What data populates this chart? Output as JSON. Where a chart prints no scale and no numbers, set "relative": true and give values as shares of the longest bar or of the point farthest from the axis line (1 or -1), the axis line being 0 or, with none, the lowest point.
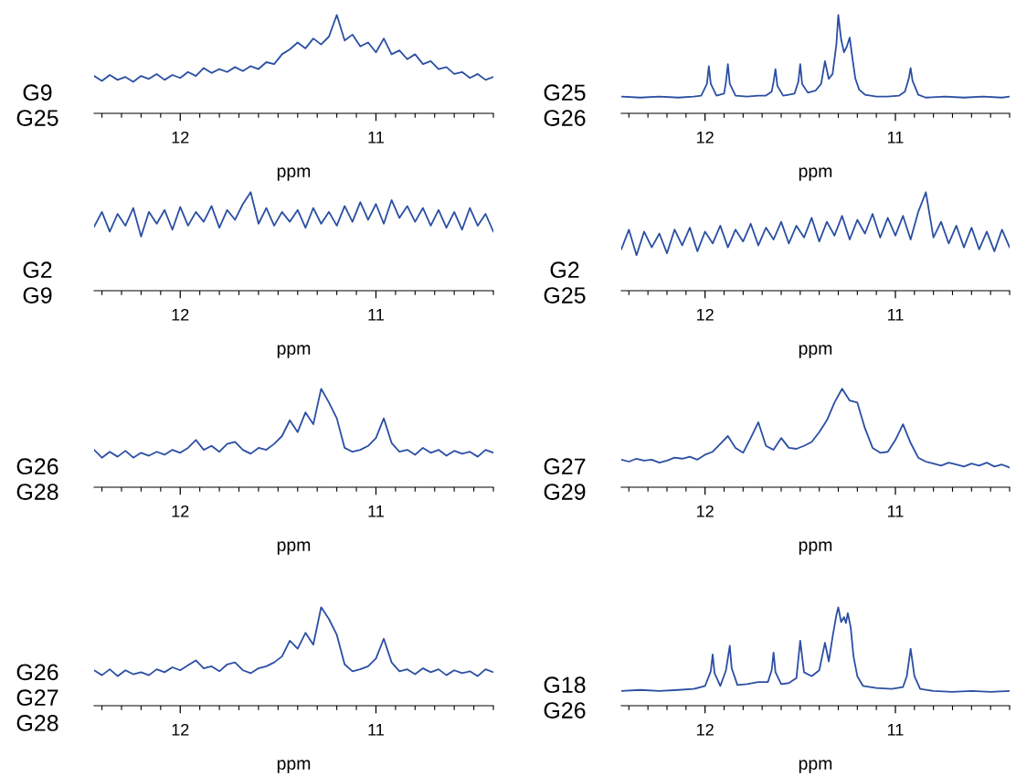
{
  "chart_data": [
    {
      "type": "line",
      "relative": true,
      "ylabel": "G9\nG25",
      "xlabel": "ppm",
      "xlim": [
        12.44,
        10.4
      ],
      "xticks": [
        {
          "value": 12.4,
          "label": null
        },
        {
          "value": 12.3,
          "label": null
        },
        {
          "value": 12.2,
          "label": null
        },
        {
          "value": 12.1,
          "label": null
        },
        12,
        {
          "value": 11.9,
          "label": null
        },
        {
          "value": 11.8,
          "label": null
        },
        {
          "value": 11.7,
          "label": null
        },
        {
          "value": 11.6,
          "label": null
        },
        {
          "value": 11.5,
          "label": null
        },
        {
          "value": 11.4,
          "label": null
        },
        {
          "value": 11.3,
          "label": null
        },
        {
          "value": 11.2,
          "label": null
        },
        {
          "value": 11.1,
          "label": null
        },
        11,
        {
          "value": 10.9,
          "label": null
        },
        {
          "value": 10.8,
          "label": null
        },
        {
          "value": 10.7,
          "label": null
        },
        {
          "value": 10.6,
          "label": null
        },
        {
          "value": 10.5,
          "label": null
        },
        {
          "value": 10.4,
          "label": null
        }
      ],
      "x": [
        12.44,
        12.4,
        12.36,
        12.32,
        12.28,
        12.24,
        12.2,
        12.16,
        12.12,
        12.08,
        12.04,
        12,
        11.96,
        11.92,
        11.88,
        11.84,
        11.8,
        11.76,
        11.72,
        11.68,
        11.64,
        11.6,
        11.56,
        11.52,
        11.48,
        11.44,
        11.4,
        11.36,
        11.32,
        11.28,
        11.24,
        11.2,
        11.16,
        11.12,
        11.08,
        11.04,
        11,
        10.96,
        10.92,
        10.88,
        10.84,
        10.8,
        10.76,
        10.72,
        10.68,
        10.64,
        10.6,
        10.56,
        10.52,
        10.48,
        10.44,
        10.4
      ],
      "series": [
        {
          "color": "#2b4fa3",
          "values": [
            0.38,
            0.33,
            0.39,
            0.34,
            0.37,
            0.32,
            0.38,
            0.35,
            0.4,
            0.34,
            0.39,
            0.36,
            0.42,
            0.38,
            0.46,
            0.41,
            0.45,
            0.42,
            0.47,
            0.43,
            0.48,
            0.45,
            0.52,
            0.5,
            0.6,
            0.65,
            0.72,
            0.66,
            0.76,
            0.7,
            0.78,
            1.0,
            0.74,
            0.8,
            0.68,
            0.72,
            0.62,
            0.76,
            0.6,
            0.64,
            0.55,
            0.6,
            0.5,
            0.53,
            0.45,
            0.47,
            0.4,
            0.42,
            0.36,
            0.4,
            0.34,
            0.37
          ]
        }
      ]
    },
    {
      "type": "line",
      "relative": true,
      "ylabel": "G25\nG26",
      "xlabel": "ppm",
      "xlim": [
        12.44,
        10.4
      ],
      "xticks": [
        {
          "value": 12.4,
          "label": null
        },
        {
          "value": 12.3,
          "label": null
        },
        {
          "value": 12.2,
          "label": null
        },
        {
          "value": 12.1,
          "label": null
        },
        12,
        {
          "value": 11.9,
          "label": null
        },
        {
          "value": 11.8,
          "label": null
        },
        {
          "value": 11.7,
          "label": null
        },
        {
          "value": 11.6,
          "label": null
        },
        {
          "value": 11.5,
          "label": null
        },
        {
          "value": 11.4,
          "label": null
        },
        {
          "value": 11.3,
          "label": null
        },
        {
          "value": 11.2,
          "label": null
        },
        {
          "value": 11.1,
          "label": null
        },
        11,
        {
          "value": 10.9,
          "label": null
        },
        {
          "value": 10.8,
          "label": null
        },
        {
          "value": 10.7,
          "label": null
        },
        {
          "value": 10.6,
          "label": null
        },
        {
          "value": 10.5,
          "label": null
        },
        {
          "value": 10.4,
          "label": null
        }
      ],
      "x": [
        12.44,
        12.34,
        12.24,
        12.14,
        12.06,
        12.02,
        11.99,
        11.98,
        11.97,
        11.94,
        11.9,
        11.89,
        11.88,
        11.87,
        11.84,
        11.78,
        11.72,
        11.68,
        11.65,
        11.64,
        11.63,
        11.62,
        11.59,
        11.56,
        11.53,
        11.51,
        11.5,
        11.49,
        11.46,
        11.42,
        11.39,
        11.37,
        11.35,
        11.33,
        11.31,
        11.3,
        11.285,
        11.27,
        11.255,
        11.24,
        11.225,
        11.21,
        11.19,
        11.16,
        11.1,
        11.04,
        10.98,
        10.95,
        10.93,
        10.92,
        10.91,
        10.88,
        10.84,
        10.74,
        10.64,
        10.54,
        10.44,
        10.4
      ],
      "series": [
        {
          "color": "#2b4fa3",
          "values": [
            0.17,
            0.16,
            0.17,
            0.16,
            0.17,
            0.18,
            0.3,
            0.48,
            0.3,
            0.18,
            0.2,
            0.32,
            0.5,
            0.3,
            0.18,
            0.17,
            0.18,
            0.18,
            0.22,
            0.32,
            0.45,
            0.28,
            0.18,
            0.19,
            0.2,
            0.32,
            0.5,
            0.3,
            0.21,
            0.23,
            0.3,
            0.53,
            0.35,
            0.4,
            0.7,
            1,
            0.75,
            0.62,
            0.68,
            0.77,
            0.55,
            0.35,
            0.24,
            0.19,
            0.17,
            0.17,
            0.18,
            0.22,
            0.35,
            0.46,
            0.33,
            0.19,
            0.16,
            0.17,
            0.16,
            0.17,
            0.16,
            0.17
          ]
        }
      ]
    },
    {
      "type": "line",
      "relative": true,
      "ylabel": "G2\nG9",
      "xlabel": "ppm",
      "xlim": [
        12.44,
        10.4
      ],
      "xticks": [
        {
          "value": 12.4,
          "label": null
        },
        {
          "value": 12.3,
          "label": null
        },
        {
          "value": 12.2,
          "label": null
        },
        {
          "value": 12.1,
          "label": null
        },
        12,
        {
          "value": 11.9,
          "label": null
        },
        {
          "value": 11.8,
          "label": null
        },
        {
          "value": 11.7,
          "label": null
        },
        {
          "value": 11.6,
          "label": null
        },
        {
          "value": 11.5,
          "label": null
        },
        {
          "value": 11.4,
          "label": null
        },
        {
          "value": 11.3,
          "label": null
        },
        {
          "value": 11.2,
          "label": null
        },
        {
          "value": 11.1,
          "label": null
        },
        11,
        {
          "value": 10.9,
          "label": null
        },
        {
          "value": 10.8,
          "label": null
        },
        {
          "value": 10.7,
          "label": null
        },
        {
          "value": 10.6,
          "label": null
        },
        {
          "value": 10.5,
          "label": null
        },
        {
          "value": 10.4,
          "label": null
        }
      ],
      "x": [
        12.44,
        12.4,
        12.36,
        12.32,
        12.28,
        12.24,
        12.2,
        12.16,
        12.12,
        12.08,
        12.04,
        12,
        11.96,
        11.92,
        11.88,
        11.84,
        11.8,
        11.76,
        11.72,
        11.68,
        11.64,
        11.6,
        11.56,
        11.52,
        11.48,
        11.44,
        11.4,
        11.36,
        11.32,
        11.28,
        11.24,
        11.2,
        11.16,
        11.12,
        11.08,
        11.04,
        11,
        10.96,
        10.92,
        10.88,
        10.84,
        10.8,
        10.76,
        10.72,
        10.68,
        10.64,
        10.6,
        10.56,
        10.52,
        10.48,
        10.44,
        10.4
      ],
      "series": [
        {
          "color": "#2b4fa3",
          "values": [
            0.65,
            0.8,
            0.6,
            0.78,
            0.66,
            0.84,
            0.55,
            0.8,
            0.68,
            0.82,
            0.62,
            0.85,
            0.66,
            0.8,
            0.7,
            0.86,
            0.64,
            0.82,
            0.72,
            0.88,
            1.0,
            0.68,
            0.84,
            0.66,
            0.8,
            0.7,
            0.82,
            0.64,
            0.84,
            0.68,
            0.8,
            0.66,
            0.86,
            0.7,
            0.9,
            0.72,
            0.88,
            0.68,
            0.92,
            0.74,
            0.86,
            0.7,
            0.84,
            0.66,
            0.82,
            0.64,
            0.8,
            0.62,
            0.84,
            0.66,
            0.78,
            0.6
          ]
        }
      ]
    },
    {
      "type": "line",
      "relative": true,
      "ylabel": "G2\nG25",
      "xlabel": "ppm",
      "xlim": [
        12.44,
        10.4
      ],
      "xticks": [
        {
          "value": 12.4,
          "label": null
        },
        {
          "value": 12.3,
          "label": null
        },
        {
          "value": 12.2,
          "label": null
        },
        {
          "value": 12.1,
          "label": null
        },
        12,
        {
          "value": 11.9,
          "label": null
        },
        {
          "value": 11.8,
          "label": null
        },
        {
          "value": 11.7,
          "label": null
        },
        {
          "value": 11.6,
          "label": null
        },
        {
          "value": 11.5,
          "label": null
        },
        {
          "value": 11.4,
          "label": null
        },
        {
          "value": 11.3,
          "label": null
        },
        {
          "value": 11.2,
          "label": null
        },
        {
          "value": 11.1,
          "label": null
        },
        11,
        {
          "value": 10.9,
          "label": null
        },
        {
          "value": 10.8,
          "label": null
        },
        {
          "value": 10.7,
          "label": null
        },
        {
          "value": 10.6,
          "label": null
        },
        {
          "value": 10.5,
          "label": null
        },
        {
          "value": 10.4,
          "label": null
        }
      ],
      "x": [
        12.44,
        12.4,
        12.36,
        12.32,
        12.28,
        12.24,
        12.2,
        12.16,
        12.12,
        12.08,
        12.04,
        12,
        11.96,
        11.92,
        11.88,
        11.84,
        11.8,
        11.76,
        11.72,
        11.68,
        11.64,
        11.6,
        11.56,
        11.52,
        11.48,
        11.44,
        11.4,
        11.36,
        11.32,
        11.28,
        11.24,
        11.2,
        11.16,
        11.12,
        11.08,
        11.04,
        11,
        10.96,
        10.92,
        10.88,
        10.84,
        10.8,
        10.76,
        10.72,
        10.68,
        10.64,
        10.6,
        10.56,
        10.52,
        10.48,
        10.44,
        10.4
      ],
      "series": [
        {
          "color": "#2b4fa3",
          "values": [
            0.42,
            0.62,
            0.36,
            0.6,
            0.44,
            0.58,
            0.38,
            0.62,
            0.46,
            0.64,
            0.4,
            0.6,
            0.48,
            0.66,
            0.44,
            0.62,
            0.5,
            0.68,
            0.46,
            0.64,
            0.52,
            0.7,
            0.48,
            0.66,
            0.54,
            0.74,
            0.5,
            0.7,
            0.56,
            0.76,
            0.52,
            0.72,
            0.58,
            0.78,
            0.54,
            0.74,
            0.56,
            0.76,
            0.52,
            0.8,
            1.0,
            0.54,
            0.7,
            0.48,
            0.66,
            0.44,
            0.64,
            0.42,
            0.6,
            0.4,
            0.62,
            0.44
          ]
        }
      ]
    },
    {
      "type": "line",
      "relative": true,
      "ylabel": "G26\nG28",
      "xlabel": "ppm",
      "xlim": [
        12.44,
        10.4
      ],
      "xticks": [
        {
          "value": 12.4,
          "label": null
        },
        {
          "value": 12.3,
          "label": null
        },
        {
          "value": 12.2,
          "label": null
        },
        {
          "value": 12.1,
          "label": null
        },
        12,
        {
          "value": 11.9,
          "label": null
        },
        {
          "value": 11.8,
          "label": null
        },
        {
          "value": 11.7,
          "label": null
        },
        {
          "value": 11.6,
          "label": null
        },
        {
          "value": 11.5,
          "label": null
        },
        {
          "value": 11.4,
          "label": null
        },
        {
          "value": 11.3,
          "label": null
        },
        {
          "value": 11.2,
          "label": null
        },
        {
          "value": 11.1,
          "label": null
        },
        11,
        {
          "value": 10.9,
          "label": null
        },
        {
          "value": 10.8,
          "label": null
        },
        {
          "value": 10.7,
          "label": null
        },
        {
          "value": 10.6,
          "label": null
        },
        {
          "value": 10.5,
          "label": null
        },
        {
          "value": 10.4,
          "label": null
        }
      ],
      "x": [
        12.44,
        12.4,
        12.36,
        12.32,
        12.28,
        12.24,
        12.2,
        12.16,
        12.12,
        12.08,
        12.04,
        12,
        11.96,
        11.92,
        11.88,
        11.84,
        11.8,
        11.76,
        11.72,
        11.68,
        11.64,
        11.6,
        11.56,
        11.52,
        11.48,
        11.44,
        11.4,
        11.36,
        11.32,
        11.28,
        11.24,
        11.2,
        11.16,
        11.12,
        11.08,
        11.04,
        11,
        10.96,
        10.92,
        10.88,
        10.84,
        10.8,
        10.76,
        10.72,
        10.68,
        10.64,
        10.6,
        10.56,
        10.52,
        10.48,
        10.44,
        10.4
      ],
      "series": [
        {
          "color": "#2b4fa3",
          "values": [
            0.38,
            0.3,
            0.36,
            0.31,
            0.37,
            0.3,
            0.35,
            0.32,
            0.36,
            0.33,
            0.38,
            0.35,
            0.4,
            0.48,
            0.38,
            0.42,
            0.36,
            0.44,
            0.46,
            0.38,
            0.34,
            0.4,
            0.38,
            0.44,
            0.52,
            0.68,
            0.56,
            0.76,
            0.64,
            1.0,
            0.86,
            0.7,
            0.4,
            0.36,
            0.38,
            0.42,
            0.5,
            0.7,
            0.45,
            0.36,
            0.38,
            0.33,
            0.4,
            0.35,
            0.38,
            0.32,
            0.37,
            0.34,
            0.36,
            0.31,
            0.38,
            0.35
          ]
        }
      ]
    },
    {
      "type": "line",
      "relative": true,
      "ylabel": "G27\nG29",
      "xlabel": "ppm",
      "xlim": [
        12.44,
        10.4
      ],
      "xticks": [
        {
          "value": 12.4,
          "label": null
        },
        {
          "value": 12.3,
          "label": null
        },
        {
          "value": 12.2,
          "label": null
        },
        {
          "value": 12.1,
          "label": null
        },
        12,
        {
          "value": 11.9,
          "label": null
        },
        {
          "value": 11.8,
          "label": null
        },
        {
          "value": 11.7,
          "label": null
        },
        {
          "value": 11.6,
          "label": null
        },
        {
          "value": 11.5,
          "label": null
        },
        {
          "value": 11.4,
          "label": null
        },
        {
          "value": 11.3,
          "label": null
        },
        {
          "value": 11.2,
          "label": null
        },
        {
          "value": 11.1,
          "label": null
        },
        11,
        {
          "value": 10.9,
          "label": null
        },
        {
          "value": 10.8,
          "label": null
        },
        {
          "value": 10.7,
          "label": null
        },
        {
          "value": 10.6,
          "label": null
        },
        {
          "value": 10.5,
          "label": null
        },
        {
          "value": 10.4,
          "label": null
        }
      ],
      "x": [
        12.44,
        12.4,
        12.36,
        12.32,
        12.28,
        12.24,
        12.2,
        12.16,
        12.12,
        12.08,
        12.04,
        12,
        11.96,
        11.92,
        11.88,
        11.84,
        11.8,
        11.76,
        11.72,
        11.68,
        11.64,
        11.6,
        11.56,
        11.52,
        11.48,
        11.44,
        11.4,
        11.36,
        11.32,
        11.28,
        11.24,
        11.2,
        11.16,
        11.12,
        11.08,
        11.04,
        11,
        10.96,
        10.92,
        10.88,
        10.84,
        10.8,
        10.76,
        10.72,
        10.68,
        10.64,
        10.6,
        10.56,
        10.52,
        10.48,
        10.44,
        10.4
      ],
      "series": [
        {
          "color": "#2b4fa3",
          "values": [
            0.28,
            0.26,
            0.29,
            0.27,
            0.28,
            0.25,
            0.27,
            0.3,
            0.29,
            0.31,
            0.28,
            0.33,
            0.36,
            0.44,
            0.52,
            0.4,
            0.35,
            0.5,
            0.66,
            0.42,
            0.38,
            0.5,
            0.4,
            0.39,
            0.42,
            0.46,
            0.56,
            0.68,
            0.86,
            1.0,
            0.88,
            0.86,
            0.6,
            0.4,
            0.35,
            0.36,
            0.48,
            0.64,
            0.45,
            0.3,
            0.26,
            0.24,
            0.22,
            0.25,
            0.23,
            0.21,
            0.24,
            0.22,
            0.25,
            0.21,
            0.23,
            0.2
          ]
        }
      ]
    },
    {
      "type": "line",
      "relative": true,
      "ylabel": "G26\nG27\nG28",
      "xlabel": "ppm",
      "xlim": [
        12.44,
        10.4
      ],
      "xticks": [
        {
          "value": 12.4,
          "label": null
        },
        {
          "value": 12.3,
          "label": null
        },
        {
          "value": 12.2,
          "label": null
        },
        {
          "value": 12.1,
          "label": null
        },
        12,
        {
          "value": 11.9,
          "label": null
        },
        {
          "value": 11.8,
          "label": null
        },
        {
          "value": 11.7,
          "label": null
        },
        {
          "value": 11.6,
          "label": null
        },
        {
          "value": 11.5,
          "label": null
        },
        {
          "value": 11.4,
          "label": null
        },
        {
          "value": 11.3,
          "label": null
        },
        {
          "value": 11.2,
          "label": null
        },
        {
          "value": 11.1,
          "label": null
        },
        11,
        {
          "value": 10.9,
          "label": null
        },
        {
          "value": 10.8,
          "label": null
        },
        {
          "value": 10.7,
          "label": null
        },
        {
          "value": 10.6,
          "label": null
        },
        {
          "value": 10.5,
          "label": null
        },
        {
          "value": 10.4,
          "label": null
        }
      ],
      "x": [
        12.44,
        12.4,
        12.36,
        12.32,
        12.28,
        12.24,
        12.2,
        12.16,
        12.12,
        12.08,
        12.04,
        12,
        11.96,
        11.92,
        11.88,
        11.84,
        11.8,
        11.76,
        11.72,
        11.68,
        11.64,
        11.6,
        11.56,
        11.52,
        11.48,
        11.44,
        11.4,
        11.36,
        11.32,
        11.28,
        11.24,
        11.2,
        11.16,
        11.12,
        11.08,
        11.04,
        11,
        10.96,
        10.92,
        10.88,
        10.84,
        10.8,
        10.76,
        10.72,
        10.68,
        10.64,
        10.6,
        10.56,
        10.52,
        10.48,
        10.44,
        10.4
      ],
      "series": [
        {
          "color": "#2b4fa3",
          "values": [
            0.36,
            0.31,
            0.37,
            0.3,
            0.36,
            0.32,
            0.34,
            0.31,
            0.37,
            0.34,
            0.39,
            0.36,
            0.41,
            0.46,
            0.38,
            0.4,
            0.35,
            0.42,
            0.44,
            0.36,
            0.33,
            0.38,
            0.4,
            0.44,
            0.5,
            0.66,
            0.58,
            0.74,
            0.62,
            1.0,
            0.88,
            0.72,
            0.42,
            0.35,
            0.37,
            0.4,
            0.48,
            0.68,
            0.44,
            0.35,
            0.37,
            0.32,
            0.38,
            0.34,
            0.37,
            0.31,
            0.36,
            0.33,
            0.35,
            0.3,
            0.37,
            0.34
          ]
        }
      ]
    },
    {
      "type": "line",
      "relative": true,
      "ylabel": "G18\nG26",
      "xlabel": "ppm",
      "xlim": [
        12.44,
        10.4
      ],
      "xticks": [
        {
          "value": 12.4,
          "label": null
        },
        {
          "value": 12.3,
          "label": null
        },
        {
          "value": 12.2,
          "label": null
        },
        {
          "value": 12.1,
          "label": null
        },
        12,
        {
          "value": 11.9,
          "label": null
        },
        {
          "value": 11.8,
          "label": null
        },
        {
          "value": 11.7,
          "label": null
        },
        {
          "value": 11.6,
          "label": null
        },
        {
          "value": 11.5,
          "label": null
        },
        {
          "value": 11.4,
          "label": null
        },
        {
          "value": 11.3,
          "label": null
        },
        {
          "value": 11.2,
          "label": null
        },
        {
          "value": 11.1,
          "label": null
        },
        11,
        {
          "value": 10.9,
          "label": null
        },
        {
          "value": 10.8,
          "label": null
        },
        {
          "value": 10.7,
          "label": null
        },
        {
          "value": 10.6,
          "label": null
        },
        {
          "value": 10.5,
          "label": null
        },
        {
          "value": 10.4,
          "label": null
        }
      ],
      "x": [
        12.44,
        12.34,
        12.24,
        12.14,
        12.06,
        12,
        11.97,
        11.96,
        11.95,
        11.92,
        11.89,
        11.87,
        11.86,
        11.83,
        11.78,
        11.72,
        11.67,
        11.65,
        11.64,
        11.63,
        11.6,
        11.56,
        11.52,
        11.5,
        11.48,
        11.44,
        11.4,
        11.37,
        11.35,
        11.33,
        11.31,
        11.3,
        11.285,
        11.27,
        11.26,
        11.25,
        11.235,
        11.22,
        11.2,
        11.17,
        11.1,
        11.02,
        10.96,
        10.94,
        10.92,
        10.9,
        10.87,
        10.8,
        10.7,
        10.6,
        10.5,
        10.4
      ],
      "series": [
        {
          "color": "#2b4fa3",
          "values": [
            0.15,
            0.16,
            0.15,
            0.16,
            0.17,
            0.2,
            0.35,
            0.52,
            0.33,
            0.2,
            0.36,
            0.61,
            0.38,
            0.21,
            0.22,
            0.24,
            0.24,
            0.36,
            0.54,
            0.34,
            0.22,
            0.23,
            0.28,
            0.66,
            0.34,
            0.3,
            0.36,
            0.64,
            0.45,
            0.7,
            0.92,
            1,
            0.85,
            0.9,
            0.84,
            0.94,
            0.8,
            0.5,
            0.3,
            0.2,
            0.18,
            0.17,
            0.19,
            0.3,
            0.58,
            0.3,
            0.17,
            0.15,
            0.14,
            0.15,
            0.14,
            0.15
          ]
        }
      ]
    }
  ]
}
